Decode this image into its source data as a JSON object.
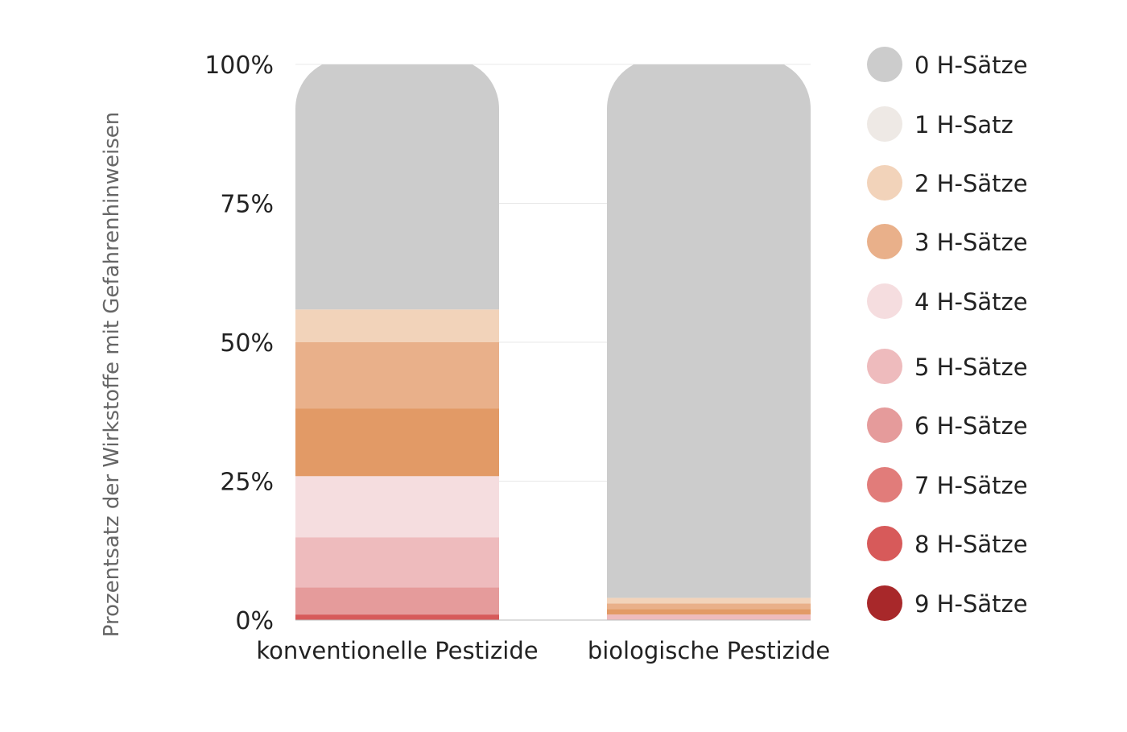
{
  "chart_data": {
    "type": "bar",
    "stacked": true,
    "title": "",
    "xlabel": "",
    "ylabel": "Prozentsatz der Wirkstoffe mit Gefahrenhinweisen",
    "ylim": [
      0,
      100
    ],
    "yticks": [
      "0%",
      "25%",
      "50%",
      "75%",
      "100%"
    ],
    "grid": true,
    "legend_position": "right",
    "categories": [
      "konventionelle Pestizide",
      "biologische Pestizide"
    ],
    "series": [
      {
        "name": "8 H-Sätze",
        "color": "#D75A5A",
        "values": [
          1.0,
          0
        ]
      },
      {
        "name": "6 H-Sätze",
        "color": "#E59B9B",
        "values": [
          4.9,
          0
        ]
      },
      {
        "name": "5 H-Sätze",
        "color": "#EEBBBD",
        "values": [
          9.0,
          1.0
        ]
      },
      {
        "name": "4 H-Sätze",
        "color": "#F5DDDF",
        "values": [
          11.0,
          0
        ]
      },
      {
        "color": "#E29A66",
        "values": [
          12.2,
          1.0
        ]
      },
      {
        "name": "3 H-Sätze",
        "color": "#E9B08A",
        "values": [
          11.9,
          1.0
        ]
      },
      {
        "name": "2 H-Sätze",
        "color": "#F2D3BA",
        "values": [
          5.9,
          1.0
        ]
      },
      {
        "name": "0 H-Sätze",
        "color": "#CCCCCC",
        "values": [
          44.1,
          96.0
        ]
      }
    ],
    "legend": [
      {
        "label": "0 H-Sätze",
        "color": "#CCCCCC"
      },
      {
        "label": "1 H-Satz",
        "color": "#EEE9E5"
      },
      {
        "label": "2 H-Sätze",
        "color": "#F2D3BA"
      },
      {
        "label": "3 H-Sätze",
        "color": "#E9B08A"
      },
      {
        "label": "4 H-Sätze",
        "color": "#F5DDDF"
      },
      {
        "label": "5 H-Sätze",
        "color": "#EEBBBD"
      },
      {
        "label": "6 H-Sätze",
        "color": "#E59B9B"
      },
      {
        "label": "7 H-Sätze",
        "color": "#E17C7A"
      },
      {
        "label": "8 H-Sätze",
        "color": "#D75A5A"
      },
      {
        "label": "9 H-Sätze",
        "color": "#A8282A"
      }
    ]
  }
}
